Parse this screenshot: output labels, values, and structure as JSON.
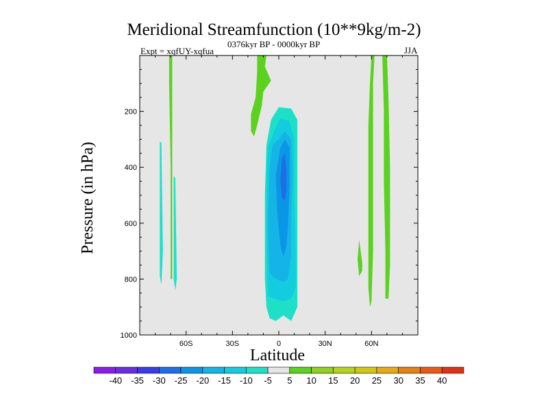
{
  "chart_data": {
    "type": "heatmap",
    "title": "Meridional Streamfunction (10**9kg/m-2)",
    "left_string": "Expt = xqfUY-xqfua",
    "center_string": "0376kyr BP - 0000kyr BP",
    "right_string": "JJA",
    "xlabel": "Latitude",
    "ylabel": "Pressure (in hPa)",
    "xlim": [
      -90,
      90
    ],
    "ylim": [
      1000,
      0
    ],
    "x_ticks": [
      {
        "value": -60,
        "label": "60S"
      },
      {
        "value": -30,
        "label": "30S"
      },
      {
        "value": 0,
        "label": "0"
      },
      {
        "value": 30,
        "label": "30N"
      },
      {
        "value": 60,
        "label": "60N"
      }
    ],
    "y_ticks": [
      {
        "value": 200,
        "label": "200"
      },
      {
        "value": 400,
        "label": "400"
      },
      {
        "value": 600,
        "label": "600"
      },
      {
        "value": 800,
        "label": "800"
      },
      {
        "value": 1000,
        "label": "1000"
      }
    ],
    "background_color": "#e6e6e6",
    "contour_levels": [
      -40,
      -35,
      -30,
      -25,
      -20,
      -15,
      -10,
      -5,
      5,
      10,
      15,
      20,
      25,
      30,
      35,
      40
    ],
    "colorbar": {
      "labels": [
        "-40",
        "-35",
        "-30",
        "-25",
        "-20",
        "-15",
        "-10",
        "-5",
        "5",
        "10",
        "15",
        "20",
        "25",
        "30",
        "35",
        "40"
      ],
      "colors": [
        "#8a1ee6",
        "#6a2ee0",
        "#3c3ce6",
        "#1e6ee6",
        "#0a96e6",
        "#14b4e6",
        "#14cce0",
        "#1ee0c8",
        "#e6e6e6",
        "#5ad21e",
        "#8cd21e",
        "#b4d21e",
        "#d2c814",
        "#e6aa14",
        "#e68214",
        "#e65a14",
        "#e03214"
      ]
    },
    "regions": [
      {
        "name": "southern-upper-positive",
        "value": 5,
        "color": "#5ad21e",
        "points": [
          [
            -14,
            0
          ],
          [
            -8,
            0
          ],
          [
            -9,
            40
          ],
          [
            -5,
            90
          ],
          [
            -10,
            130
          ],
          [
            -11,
            180
          ],
          [
            -14,
            250
          ],
          [
            -16,
            290
          ],
          [
            -18,
            270
          ],
          [
            -18,
            210
          ],
          [
            -15,
            150
          ],
          [
            -14,
            60
          ]
        ]
      },
      {
        "name": "southern-deep-positive",
        "value": 5,
        "color": "#5ad21e",
        "points": [
          [
            -71,
            0
          ],
          [
            -69,
            0
          ],
          [
            -69,
            800
          ],
          [
            -70,
            800
          ],
          [
            -70,
            400
          ],
          [
            -71,
            100
          ]
        ]
      },
      {
        "name": "southern-strip-negative-1",
        "value": -5,
        "color": "#1ee0c8",
        "points": [
          [
            -77,
            310
          ],
          [
            -76,
            310
          ],
          [
            -75,
            700
          ],
          [
            -76,
            820
          ],
          [
            -77,
            790
          ]
        ]
      },
      {
        "name": "southern-strip-negative-2",
        "value": -5,
        "color": "#1ee0c8",
        "points": [
          [
            -68,
            430
          ],
          [
            -67,
            440
          ],
          [
            -66,
            800
          ],
          [
            -67,
            840
          ],
          [
            -68,
            800
          ]
        ]
      },
      {
        "name": "cell-minus5",
        "value": -5,
        "color": "#1ee0c8",
        "points": [
          [
            -5,
            230
          ],
          [
            0,
            185
          ],
          [
            8,
            190
          ],
          [
            12,
            230
          ],
          [
            12,
            900
          ],
          [
            8,
            950
          ],
          [
            3,
            930
          ],
          [
            -2,
            950
          ],
          [
            -6,
            940
          ],
          [
            -8,
            900
          ],
          [
            -9,
            800
          ],
          [
            -9,
            500
          ],
          [
            -8,
            320
          ]
        ]
      },
      {
        "name": "cell-minus10",
        "value": -10,
        "color": "#14cce0",
        "points": [
          [
            -3,
            270
          ],
          [
            1,
            225
          ],
          [
            7,
            235
          ],
          [
            10,
            300
          ],
          [
            10,
            500
          ],
          [
            11,
            700
          ],
          [
            11,
            830
          ],
          [
            8,
            870
          ],
          [
            3,
            880
          ],
          [
            -3,
            870
          ],
          [
            -7,
            860
          ],
          [
            -8,
            700
          ],
          [
            -8,
            480
          ],
          [
            -7,
            330
          ]
        ]
      },
      {
        "name": "cell-minus15",
        "value": -15,
        "color": "#14b4e6",
        "points": [
          [
            0,
            300
          ],
          [
            4,
            270
          ],
          [
            8,
            300
          ],
          [
            9,
            420
          ],
          [
            8,
            560
          ],
          [
            8,
            720
          ],
          [
            6,
            800
          ],
          [
            3,
            810
          ],
          [
            -2,
            800
          ],
          [
            -6,
            780
          ],
          [
            -7,
            600
          ],
          [
            -6,
            400
          ],
          [
            -4,
            320
          ]
        ]
      },
      {
        "name": "cell-minus20",
        "value": -20,
        "color": "#0a96e6",
        "points": [
          [
            1,
            330
          ],
          [
            4,
            300
          ],
          [
            7,
            330
          ],
          [
            7,
            470
          ],
          [
            6,
            600
          ],
          [
            5,
            680
          ],
          [
            3,
            720
          ],
          [
            1,
            680
          ],
          [
            -1,
            560
          ],
          [
            -2,
            430
          ]
        ]
      },
      {
        "name": "cell-minus25",
        "value": -25,
        "color": "#1e6ee6",
        "points": [
          [
            2,
            370
          ],
          [
            4,
            350
          ],
          [
            5,
            420
          ],
          [
            5,
            480
          ],
          [
            4,
            520
          ],
          [
            2,
            510
          ],
          [
            1,
            450
          ]
        ]
      },
      {
        "name": "northern-positive-1",
        "value": 5,
        "color": "#5ad21e",
        "points": [
          [
            60,
            0
          ],
          [
            62,
            0
          ],
          [
            61,
            100
          ],
          [
            61,
            300
          ],
          [
            61,
            700
          ],
          [
            60,
            880
          ],
          [
            59,
            900
          ],
          [
            58,
            830
          ],
          [
            58,
            400
          ],
          [
            58,
            250
          ],
          [
            59,
            100
          ]
        ]
      },
      {
        "name": "northern-positive-2",
        "value": 5,
        "color": "#5ad21e",
        "points": [
          [
            67,
            0
          ],
          [
            70,
            0
          ],
          [
            71,
            150
          ],
          [
            72,
            400
          ],
          [
            72,
            750
          ],
          [
            71,
            870
          ],
          [
            69,
            870
          ],
          [
            69,
            700
          ],
          [
            68,
            450
          ],
          [
            68,
            200
          ]
        ]
      },
      {
        "name": "northern-positive-3",
        "value": 5,
        "color": "#5ad21e",
        "points": [
          [
            52,
            660
          ],
          [
            54,
            740
          ],
          [
            54,
            770
          ],
          [
            52,
            790
          ],
          [
            51,
            730
          ]
        ]
      }
    ]
  }
}
